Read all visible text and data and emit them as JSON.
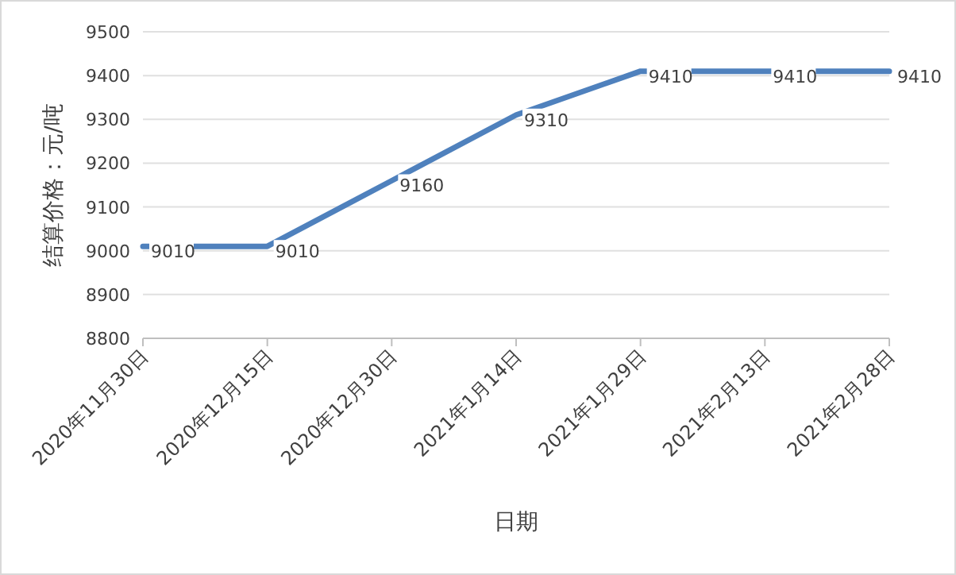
{
  "chart_data": {
    "type": "line",
    "xlabel": "日期",
    "ylabel": "结算价格：元/吨",
    "categories": [
      "2020年11月30日",
      "2020年12月15日",
      "2020年12月30日",
      "2021年1月14日",
      "2021年1月29日",
      "2021年2月13日",
      "2021年2月28日"
    ],
    "series": [
      {
        "color": "#4f81bd",
        "values": [
          9010,
          9010,
          9160,
          9310,
          9410,
          9410,
          9410
        ]
      }
    ],
    "ylim": [
      8800,
      9500
    ],
    "yticks": [
      8800,
      8900,
      9000,
      9100,
      9200,
      9300,
      9400,
      9500
    ],
    "grid": "y",
    "data_labels": true,
    "marker": "none",
    "line_style": "solid"
  }
}
